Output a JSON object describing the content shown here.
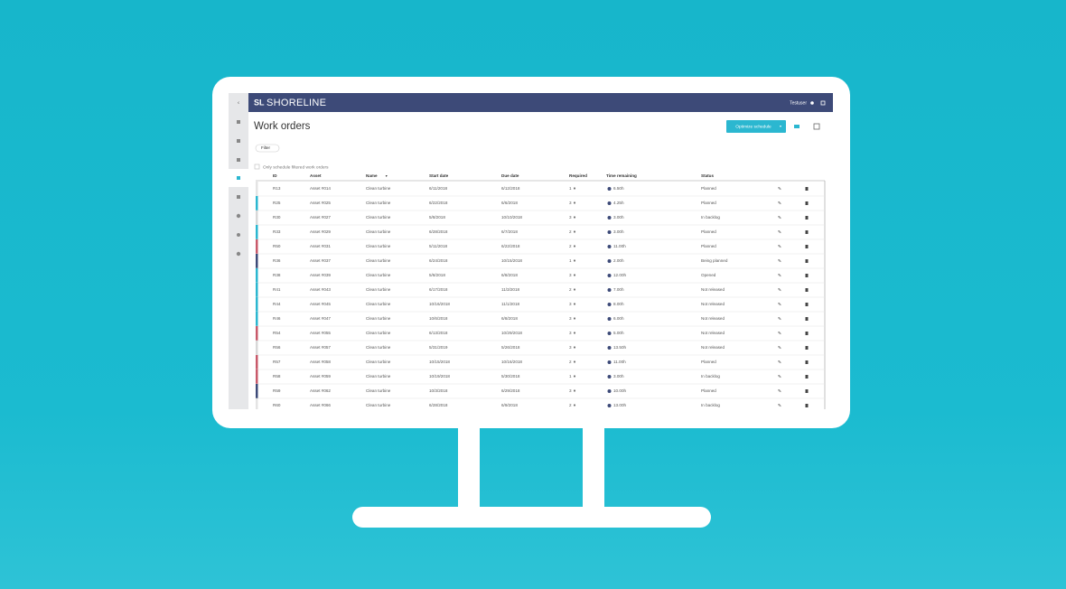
{
  "header": {
    "brand": "SHORELINE",
    "user": "Testuser"
  },
  "page": {
    "title": "Work orders",
    "optimize_button": "Optimize schedule",
    "filter": "Filter",
    "only_filtered": "Only schedule filtered work orders"
  },
  "table": {
    "columns": [
      "ID",
      "Asset",
      "Name",
      "Start date",
      "Due date",
      "Required",
      "Time remaining",
      "Status"
    ],
    "rows": [
      [
        "R13",
        "Asset #014",
        "Clean turbine",
        "6/11/2018",
        "6/12/2018",
        1,
        "6.50h",
        "Planned"
      ],
      [
        "R25",
        "Asset #025",
        "Clean turbine",
        "6/22/2018",
        "6/6/2018",
        3,
        "4.25h",
        "Planned"
      ],
      [
        "R30",
        "Asset #027",
        "Clean turbine",
        "5/8/2018",
        "10/10/2018",
        3,
        "3.00h",
        "In backlog"
      ],
      [
        "R33",
        "Asset #029",
        "Clean turbine",
        "6/28/2018",
        "6/7/2018",
        2,
        "3.00h",
        "Planned"
      ],
      [
        "R50",
        "Asset #031",
        "Clean turbine",
        "5/11/2018",
        "6/22/2018",
        2,
        "11.00h",
        "Planned"
      ],
      [
        "R36",
        "Asset #037",
        "Clean turbine",
        "6/24/2018",
        "10/15/2018",
        1,
        "2.00h",
        "Being planned"
      ],
      [
        "R38",
        "Asset #039",
        "Clean turbine",
        "5/8/2018",
        "6/8/2018",
        3,
        "12.00h",
        "Opened"
      ],
      [
        "R41",
        "Asset #043",
        "Clean turbine",
        "6/17/2018",
        "11/3/2018",
        2,
        "7.00h",
        "Not released"
      ],
      [
        "R44",
        "Asset #045",
        "Clean turbine",
        "10/16/2018",
        "11/1/2018",
        3,
        "8.00h",
        "Not released"
      ],
      [
        "R46",
        "Asset #047",
        "Clean turbine",
        "10/6/2018",
        "6/8/2018",
        3,
        "6.00h",
        "Not released"
      ],
      [
        "R54",
        "Asset #055",
        "Clean turbine",
        "6/13/2018",
        "10/29/2018",
        3,
        "5.00h",
        "Not released"
      ],
      [
        "R56",
        "Asset #057",
        "Clean turbine",
        "5/31/2019",
        "5/26/2018",
        3,
        "13.50h",
        "Not released"
      ],
      [
        "R57",
        "Asset #058",
        "Clean turbine",
        "10/15/2018",
        "10/16/2018",
        2,
        "11.00h",
        "Planned"
      ],
      [
        "R58",
        "Asset #059",
        "Clean turbine",
        "10/19/2018",
        "5/30/2018",
        1,
        "3.00h",
        "In backlog"
      ],
      [
        "R59",
        "Asset #062",
        "Clean turbine",
        "10/3/2018",
        "6/29/2018",
        3,
        "10.00h",
        "Planned"
      ],
      [
        "R60",
        "Asset #066",
        "Clean turbine",
        "6/28/2018",
        "6/9/2018",
        2,
        "13.00h",
        "In backlog"
      ]
    ],
    "row_colors": [
      "#e4e4e4",
      "#2bb7d0",
      "#d8d8d8",
      "#2bb7d0",
      "#c8596a",
      "#3d4a78",
      "#2bb7d0",
      "#2bb7d0",
      "#2bb7d0",
      "#2bb7d0",
      "#c8596a",
      "#d8d8d8",
      "#c8596a",
      "#c8596a",
      "#3d4a78",
      "#e4e4e4"
    ]
  }
}
